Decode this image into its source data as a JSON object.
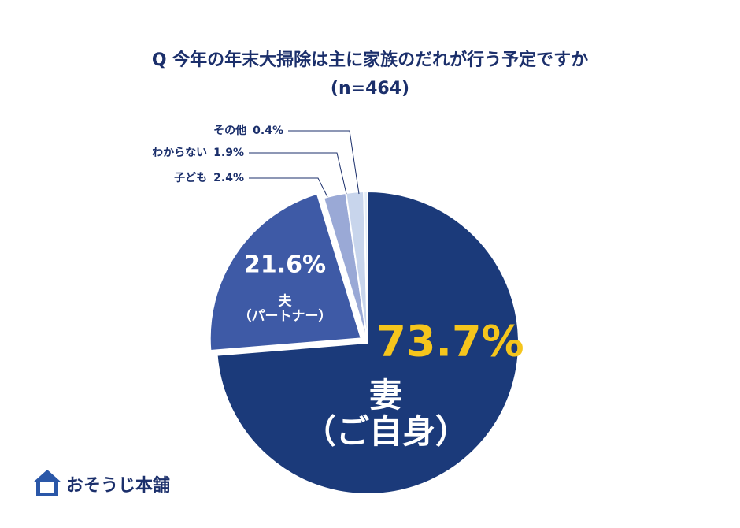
{
  "chart_data": {
    "type": "pie",
    "title": "Q 今年の年末大掃除は主に家族のだれが行う予定ですか",
    "subtitle": "(n=464)",
    "categories": [
      "妻\n（ご自身）",
      "夫\n（パートナー）",
      "子ども",
      "わからない",
      "その他"
    ],
    "values": [
      73.7,
      21.6,
      2.4,
      1.9,
      0.4
    ],
    "value_labels": [
      "73.7%",
      "21.6%",
      "2.4%",
      "1.9%",
      "0.4%"
    ],
    "colors": [
      "#1b3a7a",
      "#3e5aa6",
      "#9aa9d6",
      "#c8d5ec",
      "#e4edf8"
    ]
  },
  "logo": "おそうじ本舗"
}
